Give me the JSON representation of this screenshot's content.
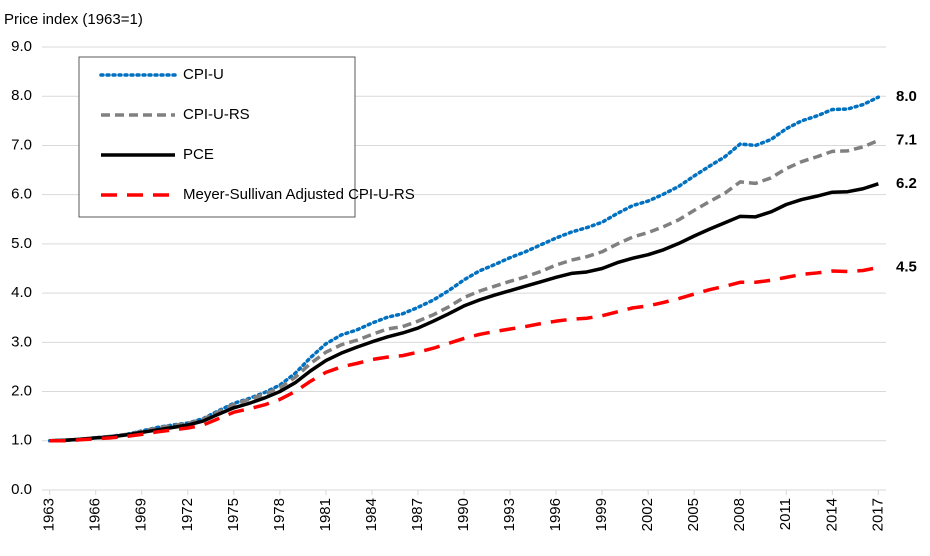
{
  "chart_data": {
    "type": "line",
    "y_label": "Price index (1963=1)",
    "x": [
      1963,
      1964,
      1965,
      1966,
      1967,
      1968,
      1969,
      1970,
      1971,
      1972,
      1973,
      1974,
      1975,
      1976,
      1977,
      1978,
      1979,
      1980,
      1981,
      1982,
      1983,
      1984,
      1985,
      1986,
      1987,
      1988,
      1989,
      1990,
      1991,
      1992,
      1993,
      1994,
      1995,
      1996,
      1997,
      1998,
      1999,
      2000,
      2001,
      2002,
      2003,
      2004,
      2005,
      2006,
      2007,
      2008,
      2009,
      2010,
      2011,
      2012,
      2013,
      2014,
      2015,
      2016,
      2017
    ],
    "xlim": [
      1962.5,
      2017.5
    ],
    "xticks": [
      1963,
      1966,
      1969,
      1972,
      1975,
      1978,
      1981,
      1984,
      1987,
      1990,
      1993,
      1996,
      1999,
      2002,
      2005,
      2008,
      2011,
      2014,
      2017
    ],
    "ylim": [
      0,
      9
    ],
    "yticks": [
      {
        "value": 0,
        "label": "0.0"
      },
      {
        "value": 1,
        "label": "1.0"
      },
      {
        "value": 2,
        "label": "2.0"
      },
      {
        "value": 3,
        "label": "3.0"
      },
      {
        "value": 4,
        "label": "4.0"
      },
      {
        "value": 5,
        "label": "5.0"
      },
      {
        "value": 6,
        "label": "6.0"
      },
      {
        "value": 7,
        "label": "7.0"
      },
      {
        "value": 8,
        "label": "8.0"
      },
      {
        "value": 9,
        "label": "9.0"
      }
    ],
    "grid": true,
    "legend": "upper left",
    "series": [
      {
        "name": "CPI-U",
        "color": "#0070c0",
        "style": "dotted",
        "values": [
          1.0,
          1.01,
          1.03,
          1.06,
          1.09,
          1.13,
          1.2,
          1.27,
          1.32,
          1.36,
          1.45,
          1.61,
          1.76,
          1.86,
          1.98,
          2.13,
          2.37,
          2.69,
          2.97,
          3.15,
          3.25,
          3.39,
          3.51,
          3.58,
          3.71,
          3.86,
          4.05,
          4.27,
          4.45,
          4.58,
          4.72,
          4.84,
          4.98,
          5.12,
          5.24,
          5.33,
          5.44,
          5.62,
          5.78,
          5.87,
          6.01,
          6.17,
          6.38,
          6.58,
          6.77,
          7.03,
          7.0,
          7.12,
          7.34,
          7.5,
          7.6,
          7.73,
          7.74,
          7.83,
          7.98
        ],
        "value_labels": [
          null,
          null,
          null,
          null,
          null,
          null,
          null,
          null,
          null,
          null,
          null,
          null,
          null,
          null,
          null,
          null,
          null,
          null,
          null,
          null,
          null,
          null,
          null,
          null,
          null,
          null,
          null,
          null,
          null,
          null,
          null,
          null,
          null,
          null,
          null,
          null,
          null,
          null,
          null,
          null,
          null,
          null,
          null,
          null,
          null,
          null,
          null,
          null,
          null,
          null,
          null,
          null,
          null,
          null,
          "8.0"
        ]
      },
      {
        "name": "CPI-U-RS",
        "color": "#808080",
        "style": "dashed",
        "values": [
          1.0,
          1.01,
          1.03,
          1.06,
          1.09,
          1.13,
          1.19,
          1.26,
          1.31,
          1.35,
          1.44,
          1.59,
          1.74,
          1.84,
          1.95,
          2.08,
          2.29,
          2.57,
          2.8,
          2.95,
          3.04,
          3.16,
          3.27,
          3.32,
          3.43,
          3.56,
          3.72,
          3.91,
          4.04,
          4.14,
          4.24,
          4.33,
          4.44,
          4.57,
          4.67,
          4.74,
          4.84,
          5.0,
          5.14,
          5.23,
          5.35,
          5.49,
          5.68,
          5.86,
          6.03,
          6.26,
          6.23,
          6.34,
          6.53,
          6.67,
          6.77,
          6.88,
          6.89,
          6.97,
          7.1
        ],
        "value_labels": [
          null,
          null,
          null,
          null,
          null,
          null,
          null,
          null,
          null,
          null,
          null,
          null,
          null,
          null,
          null,
          null,
          null,
          null,
          null,
          null,
          null,
          null,
          null,
          null,
          null,
          null,
          null,
          null,
          null,
          null,
          null,
          null,
          null,
          null,
          null,
          null,
          null,
          null,
          null,
          null,
          null,
          null,
          null,
          null,
          null,
          null,
          null,
          null,
          null,
          null,
          null,
          null,
          null,
          null,
          "7.1"
        ]
      },
      {
        "name": "PCE",
        "color": "#000000",
        "style": "solid",
        "values": [
          1.0,
          1.01,
          1.03,
          1.06,
          1.08,
          1.12,
          1.17,
          1.22,
          1.27,
          1.32,
          1.4,
          1.54,
          1.67,
          1.76,
          1.87,
          2.0,
          2.18,
          2.42,
          2.63,
          2.78,
          2.9,
          3.01,
          3.11,
          3.19,
          3.29,
          3.43,
          3.58,
          3.74,
          3.86,
          3.96,
          4.05,
          4.14,
          4.23,
          4.32,
          4.4,
          4.43,
          4.5,
          4.62,
          4.71,
          4.78,
          4.88,
          5.01,
          5.16,
          5.3,
          5.43,
          5.56,
          5.55,
          5.65,
          5.8,
          5.9,
          5.97,
          6.05,
          6.06,
          6.12,
          6.22
        ],
        "value_labels": [
          null,
          null,
          null,
          null,
          null,
          null,
          null,
          null,
          null,
          null,
          null,
          null,
          null,
          null,
          null,
          null,
          null,
          null,
          null,
          null,
          null,
          null,
          null,
          null,
          null,
          null,
          null,
          null,
          null,
          null,
          null,
          null,
          null,
          null,
          null,
          null,
          null,
          null,
          null,
          null,
          null,
          null,
          null,
          null,
          null,
          null,
          null,
          null,
          null,
          null,
          null,
          null,
          null,
          null,
          "6.2"
        ]
      },
      {
        "name": "Meyer-Sullivan Adjusted CPI-U-RS",
        "color": "#ff0000",
        "style": "long-dashed",
        "values": [
          1.0,
          1.0,
          1.02,
          1.04,
          1.06,
          1.09,
          1.13,
          1.18,
          1.22,
          1.26,
          1.32,
          1.45,
          1.58,
          1.65,
          1.73,
          1.84,
          2.0,
          2.21,
          2.39,
          2.5,
          2.57,
          2.65,
          2.7,
          2.73,
          2.8,
          2.88,
          2.98,
          3.08,
          3.16,
          3.22,
          3.27,
          3.32,
          3.38,
          3.43,
          3.47,
          3.49,
          3.54,
          3.62,
          3.7,
          3.74,
          3.81,
          3.89,
          3.98,
          4.07,
          4.14,
          4.22,
          4.22,
          4.26,
          4.32,
          4.38,
          4.41,
          4.45,
          4.44,
          4.46,
          4.52
        ],
        "value_labels": [
          null,
          null,
          null,
          null,
          null,
          null,
          null,
          null,
          null,
          null,
          null,
          null,
          null,
          null,
          null,
          null,
          null,
          null,
          null,
          null,
          null,
          null,
          null,
          null,
          null,
          null,
          null,
          null,
          null,
          null,
          null,
          null,
          null,
          null,
          null,
          null,
          null,
          null,
          null,
          null,
          null,
          null,
          null,
          null,
          null,
          null,
          null,
          null,
          null,
          null,
          null,
          null,
          null,
          null,
          "4.5"
        ]
      }
    ]
  }
}
